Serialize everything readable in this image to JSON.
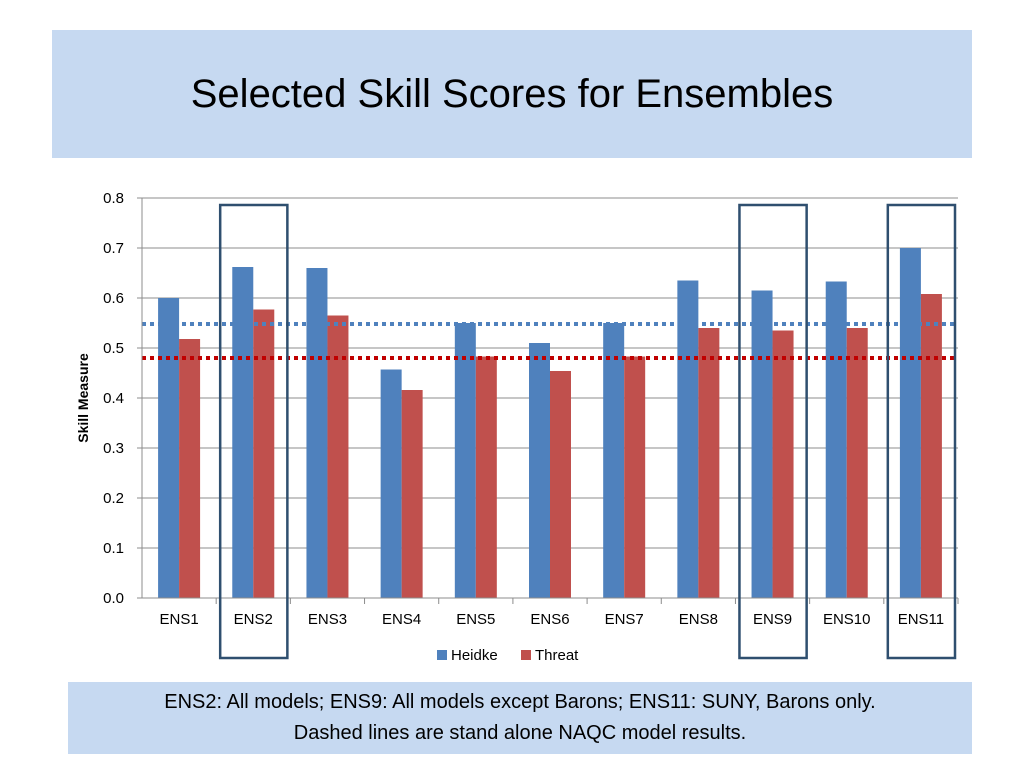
{
  "slide": {
    "title": "Selected Skill Scores for Ensembles",
    "caption_line1": "ENS2:  All models; ENS9: All models except Barons; ENS11:  SUNY, Barons only.",
    "caption_line2": "Dashed lines are stand alone NAQC model results.",
    "title_bg": "#c6d9f1"
  },
  "chart_data": {
    "type": "bar",
    "title": "",
    "xlabel": "",
    "ylabel": "Skill Measure",
    "ylim": [
      0,
      0.8
    ],
    "yticks": [
      "0.0",
      "0.1",
      "0.2",
      "0.3",
      "0.4",
      "0.5",
      "0.6",
      "0.7",
      "0.8"
    ],
    "grid": true,
    "legend_position": "bottom",
    "categories": [
      "ENS1",
      "ENS2",
      "ENS3",
      "ENS4",
      "ENS5",
      "ENS6",
      "ENS7",
      "ENS8",
      "ENS9",
      "ENS10",
      "ENS11"
    ],
    "series": [
      {
        "name": "Heidke",
        "color": "#4f81bd",
        "values": [
          0.6,
          0.662,
          0.66,
          0.457,
          0.55,
          0.51,
          0.55,
          0.635,
          0.615,
          0.633,
          0.7
        ]
      },
      {
        "name": "Threat",
        "color": "#c0504d",
        "values": [
          0.518,
          0.577,
          0.565,
          0.416,
          0.483,
          0.454,
          0.483,
          0.54,
          0.535,
          0.54,
          0.608
        ]
      }
    ],
    "reference_lines": [
      {
        "series": "Heidke",
        "value": 0.548,
        "color": "#4f81bd",
        "style": "dashed"
      },
      {
        "series": "Threat",
        "value": 0.48,
        "color": "#c00000",
        "style": "dashed"
      }
    ],
    "highlighted_categories": [
      "ENS2",
      "ENS9",
      "ENS11"
    ],
    "highlight_color": "#2f4f6f"
  }
}
